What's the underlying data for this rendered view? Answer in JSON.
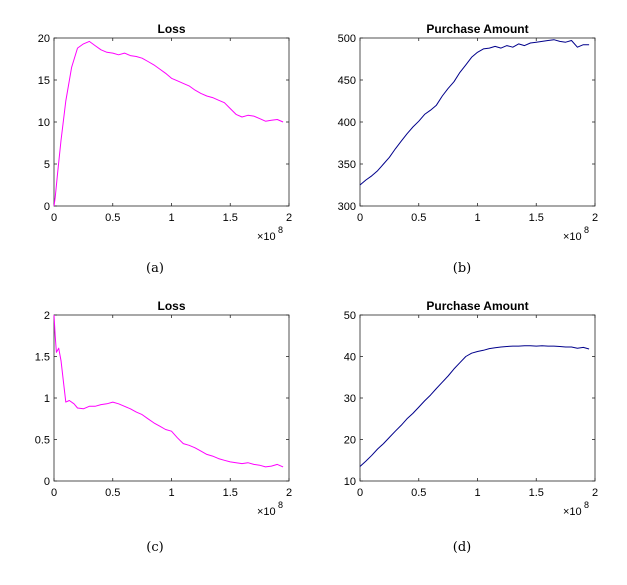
{
  "chart_data": [
    {
      "id": "a",
      "type": "line",
      "title": "Loss",
      "caption": "(a)",
      "xlim": [
        0,
        2
      ],
      "ylim": [
        0,
        20
      ],
      "xticks": [
        "0",
        "0.5",
        "1",
        "1.5",
        "2"
      ],
      "yticks": [
        "0",
        "5",
        "10",
        "15",
        "20"
      ],
      "x_multiplier_base": "×10",
      "x_multiplier_exp": "8",
      "color": "#ff00ff",
      "series": [
        {
          "name": "loss",
          "x": [
            0,
            0.01,
            0.03,
            0.06,
            0.1,
            0.15,
            0.2,
            0.25,
            0.3,
            0.35,
            0.4,
            0.45,
            0.5,
            0.55,
            0.6,
            0.65,
            0.7,
            0.75,
            0.8,
            0.85,
            0.9,
            0.95,
            1.0,
            1.05,
            1.1,
            1.15,
            1.2,
            1.25,
            1.3,
            1.35,
            1.4,
            1.45,
            1.5,
            1.55,
            1.6,
            1.65,
            1.7,
            1.75,
            1.8,
            1.85,
            1.9,
            1.95
          ],
          "values": [
            0,
            1.0,
            3.8,
            7.8,
            12.5,
            16.5,
            18.8,
            19.3,
            19.6,
            19.1,
            18.6,
            18.3,
            18.2,
            18.0,
            18.2,
            17.9,
            17.8,
            17.6,
            17.2,
            16.8,
            16.3,
            15.8,
            15.2,
            14.9,
            14.6,
            14.3,
            13.8,
            13.4,
            13.1,
            12.9,
            12.6,
            12.3,
            11.6,
            10.9,
            10.6,
            10.8,
            10.7,
            10.4,
            10.1,
            10.2,
            10.3,
            10.0
          ]
        }
      ]
    },
    {
      "id": "b",
      "type": "line",
      "title": "Purchase Amount",
      "caption": "(b)",
      "xlim": [
        0,
        2
      ],
      "ylim": [
        300,
        500
      ],
      "xticks": [
        "0",
        "0.5",
        "1",
        "1.5",
        "2"
      ],
      "yticks": [
        "300",
        "350",
        "400",
        "450",
        "500"
      ],
      "x_multiplier_base": "×10",
      "x_multiplier_exp": "8",
      "color": "#00008b",
      "series": [
        {
          "name": "purchase",
          "x": [
            0,
            0.05,
            0.1,
            0.15,
            0.2,
            0.25,
            0.3,
            0.35,
            0.4,
            0.45,
            0.5,
            0.55,
            0.6,
            0.65,
            0.7,
            0.75,
            0.8,
            0.85,
            0.9,
            0.95,
            1.0,
            1.05,
            1.1,
            1.15,
            1.2,
            1.25,
            1.3,
            1.35,
            1.4,
            1.45,
            1.5,
            1.55,
            1.6,
            1.65,
            1.7,
            1.75,
            1.8,
            1.85,
            1.9,
            1.95
          ],
          "values": [
            325,
            331,
            336,
            342,
            350,
            358,
            368,
            377,
            386,
            394,
            401,
            409,
            414,
            420,
            431,
            440,
            448,
            459,
            468,
            477,
            483,
            487,
            488,
            490,
            488,
            491,
            489,
            493,
            491,
            494,
            495,
            496,
            497,
            498,
            496,
            495,
            497,
            489,
            492,
            492
          ]
        }
      ]
    },
    {
      "id": "c",
      "type": "line",
      "title": "Loss",
      "caption": "(c)",
      "xlim": [
        0,
        2
      ],
      "ylim": [
        0,
        2
      ],
      "xticks": [
        "0",
        "0.5",
        "1",
        "1.5",
        "2"
      ],
      "yticks": [
        "0",
        "0.5",
        "1",
        "1.5",
        "2"
      ],
      "x_multiplier_base": "×10",
      "x_multiplier_exp": "8",
      "color": "#ff00ff",
      "series": [
        {
          "name": "loss",
          "x": [
            0,
            0.01,
            0.02,
            0.04,
            0.06,
            0.08,
            0.1,
            0.13,
            0.17,
            0.2,
            0.25,
            0.3,
            0.35,
            0.4,
            0.45,
            0.5,
            0.55,
            0.6,
            0.65,
            0.7,
            0.75,
            0.8,
            0.85,
            0.9,
            0.95,
            1.0,
            1.05,
            1.1,
            1.15,
            1.2,
            1.25,
            1.3,
            1.35,
            1.4,
            1.45,
            1.5,
            1.55,
            1.6,
            1.65,
            1.7,
            1.75,
            1.8,
            1.85,
            1.9,
            1.95
          ],
          "values": [
            2.0,
            1.75,
            1.55,
            1.6,
            1.45,
            1.2,
            0.95,
            0.97,
            0.93,
            0.88,
            0.87,
            0.9,
            0.9,
            0.92,
            0.93,
            0.95,
            0.93,
            0.9,
            0.87,
            0.83,
            0.8,
            0.75,
            0.7,
            0.66,
            0.62,
            0.6,
            0.52,
            0.45,
            0.43,
            0.4,
            0.36,
            0.32,
            0.3,
            0.27,
            0.25,
            0.23,
            0.22,
            0.21,
            0.22,
            0.2,
            0.19,
            0.17,
            0.18,
            0.2,
            0.17
          ]
        }
      ]
    },
    {
      "id": "d",
      "type": "line",
      "title": "Purchase Amount",
      "caption": "(d)",
      "xlim": [
        0,
        2
      ],
      "ylim": [
        10,
        50
      ],
      "xticks": [
        "0",
        "0.5",
        "1",
        "1.5",
        "2"
      ],
      "yticks": [
        "10",
        "20",
        "30",
        "40",
        "50"
      ],
      "x_multiplier_base": "×10",
      "x_multiplier_exp": "8",
      "color": "#00008b",
      "series": [
        {
          "name": "purchase",
          "x": [
            0,
            0.05,
            0.1,
            0.15,
            0.2,
            0.25,
            0.3,
            0.35,
            0.4,
            0.45,
            0.5,
            0.55,
            0.6,
            0.65,
            0.7,
            0.75,
            0.8,
            0.85,
            0.9,
            0.95,
            1.0,
            1.05,
            1.1,
            1.15,
            1.2,
            1.25,
            1.3,
            1.35,
            1.4,
            1.45,
            1.5,
            1.55,
            1.6,
            1.65,
            1.7,
            1.75,
            1.8,
            1.85,
            1.9,
            1.95
          ],
          "values": [
            13.5,
            14.8,
            16.2,
            17.7,
            19.0,
            20.5,
            22.0,
            23.4,
            25.0,
            26.3,
            27.8,
            29.3,
            30.7,
            32.3,
            33.8,
            35.3,
            37.0,
            38.5,
            40.0,
            40.8,
            41.2,
            41.5,
            41.9,
            42.1,
            42.3,
            42.4,
            42.5,
            42.5,
            42.6,
            42.6,
            42.5,
            42.6,
            42.5,
            42.5,
            42.4,
            42.3,
            42.3,
            42.0,
            42.2,
            41.8
          ]
        }
      ]
    }
  ]
}
